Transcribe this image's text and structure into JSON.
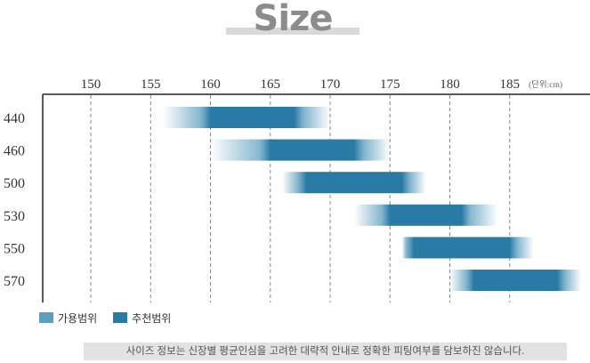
{
  "page_title": "Size",
  "footnote": "사이즈 정보는 신장별 평균인심을 고려한 대략적 안내로 정확한 피팅여부를 담보하진 않습니다.",
  "colors": {
    "available": "#5e9fbf",
    "recommended": "#2a7aa6"
  },
  "chart_data": {
    "type": "bar",
    "orientation": "horizontal-range",
    "unit_note": "(단위:cm)",
    "x_ticks": [
      150,
      155,
      160,
      165,
      170,
      175,
      180,
      185
    ],
    "xlim": [
      144,
      191
    ],
    "categories": [
      "440",
      "460",
      "500",
      "530",
      "550",
      "570"
    ],
    "legend": [
      {
        "name": "가용범위",
        "color_key": "available"
      },
      {
        "name": "추천범위",
        "color_key": "recommended"
      }
    ],
    "series": [
      {
        "name": "가용범위",
        "ranges": [
          [
            156,
            170
          ],
          [
            160,
            175
          ],
          [
            166,
            178
          ],
          [
            172,
            184
          ],
          [
            176,
            187
          ],
          [
            180,
            191
          ]
        ]
      },
      {
        "name": "추천범위",
        "ranges": [
          [
            160,
            167
          ],
          [
            165,
            172
          ],
          [
            168,
            176
          ],
          [
            175,
            181
          ],
          [
            177,
            185
          ],
          [
            182,
            189
          ]
        ]
      }
    ],
    "grid": "vertical-dashed",
    "legend_position": "bottom-left"
  }
}
